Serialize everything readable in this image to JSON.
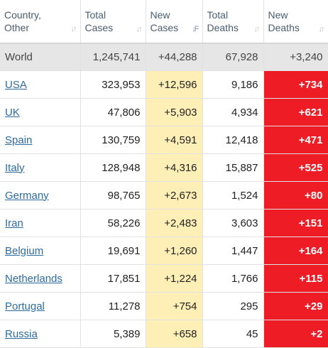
{
  "headers": [
    {
      "label": "Country,\nOther",
      "sort": "↓↑",
      "active": false
    },
    {
      "label": "Total\nCases",
      "sort": "↓↑",
      "active": false
    },
    {
      "label": "New\nCases",
      "sort": "↓F",
      "active": true
    },
    {
      "label": "Total\nDeaths",
      "sort": "↓↑",
      "active": false
    },
    {
      "label": "New\nDeaths",
      "sort": "↓↑",
      "active": false
    }
  ],
  "world": {
    "country": "World",
    "total_cases": "1,245,741",
    "new_cases": "+44,288",
    "total_deaths": "67,928",
    "new_deaths": "+3,240"
  },
  "rows": [
    {
      "country": "USA",
      "total_cases": "323,953",
      "new_cases": "+12,596",
      "total_deaths": "9,186",
      "new_deaths": "+734"
    },
    {
      "country": "UK",
      "total_cases": "47,806",
      "new_cases": "+5,903",
      "total_deaths": "4,934",
      "new_deaths": "+621"
    },
    {
      "country": "Spain",
      "total_cases": "130,759",
      "new_cases": "+4,591",
      "total_deaths": "12,418",
      "new_deaths": "+471"
    },
    {
      "country": "Italy",
      "total_cases": "128,948",
      "new_cases": "+4,316",
      "total_deaths": "15,887",
      "new_deaths": "+525"
    },
    {
      "country": "Germany",
      "total_cases": "98,765",
      "new_cases": "+2,673",
      "total_deaths": "1,524",
      "new_deaths": "+80"
    },
    {
      "country": "Iran",
      "total_cases": "58,226",
      "new_cases": "+2,483",
      "total_deaths": "3,603",
      "new_deaths": "+151"
    },
    {
      "country": "Belgium",
      "total_cases": "19,691",
      "new_cases": "+1,260",
      "total_deaths": "1,447",
      "new_deaths": "+164"
    },
    {
      "country": "Netherlands",
      "total_cases": "17,851",
      "new_cases": "+1,224",
      "total_deaths": "1,766",
      "new_deaths": "+115"
    },
    {
      "country": "Portugal",
      "total_cases": "11,278",
      "new_cases": "+754",
      "total_deaths": "295",
      "new_deaths": "+29"
    },
    {
      "country": "Russia",
      "total_cases": "5,389",
      "new_cases": "+658",
      "total_deaths": "45",
      "new_deaths": "+2"
    }
  ],
  "colors": {
    "new_cases_bg": "#fdefb6",
    "new_deaths_bg": "#ee1c24",
    "world_bg": "#e6e6e6",
    "link": "#2e6b9f"
  }
}
